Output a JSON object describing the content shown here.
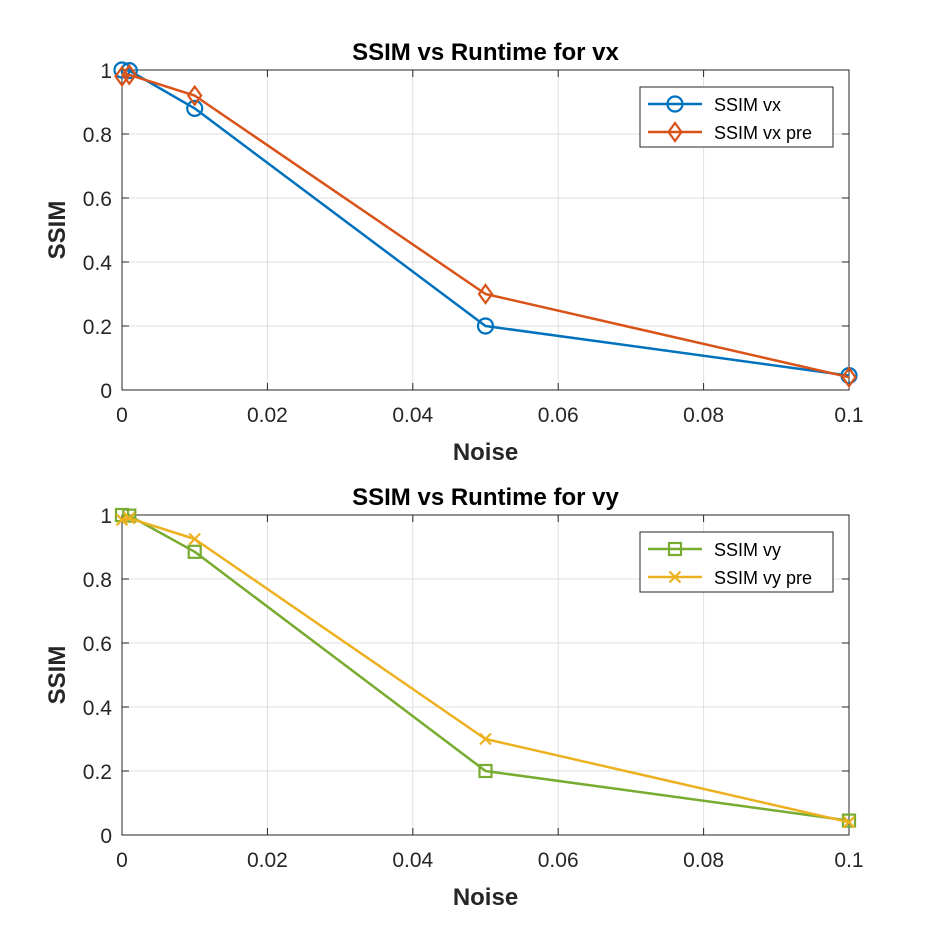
{
  "chart_data": [
    {
      "type": "line",
      "title": "SSIM vs Runtime for vx",
      "xlabel": "Noise",
      "ylabel": "SSIM",
      "xlim": [
        0,
        0.1
      ],
      "ylim": [
        0,
        1
      ],
      "xticks": [
        0,
        0.02,
        0.04,
        0.06,
        0.08,
        0.1
      ],
      "xtick_labels": [
        "0",
        "0.02",
        "0.04",
        "0.06",
        "0.08",
        "0.1"
      ],
      "yticks": [
        0,
        0.2,
        0.4,
        0.6,
        0.8,
        1
      ],
      "ytick_labels": [
        "0",
        "0.2",
        "0.4",
        "0.6",
        "0.8",
        "1"
      ],
      "grid": true,
      "legend_position": "top-right",
      "x": [
        0,
        0.001,
        0.01,
        0.05,
        0.1
      ],
      "series": [
        {
          "name": "SSIM vx",
          "values": [
            1.0,
            0.998,
            0.88,
            0.2,
            0.045
          ],
          "color": "#0072BD",
          "marker": "circle"
        },
        {
          "name": "SSIM vx pre",
          "values": [
            0.98,
            0.985,
            0.92,
            0.3,
            0.04
          ],
          "color": "#D95319",
          "marker": "diamond"
        }
      ]
    },
    {
      "type": "line",
      "title": "SSIM vs Runtime for vy",
      "xlabel": "Noise",
      "ylabel": "SSIM",
      "xlim": [
        0,
        0.1
      ],
      "ylim": [
        0,
        1
      ],
      "xticks": [
        0,
        0.02,
        0.04,
        0.06,
        0.08,
        0.1
      ],
      "xtick_labels": [
        "0",
        "0.02",
        "0.04",
        "0.06",
        "0.08",
        "0.1"
      ],
      "yticks": [
        0,
        0.2,
        0.4,
        0.6,
        0.8,
        1
      ],
      "ytick_labels": [
        "0",
        "0.2",
        "0.4",
        "0.6",
        "0.8",
        "1"
      ],
      "grid": true,
      "legend_position": "top-right",
      "x": [
        0,
        0.001,
        0.01,
        0.05,
        0.1
      ],
      "series": [
        {
          "name": "SSIM vy",
          "values": [
            1.0,
            0.998,
            0.885,
            0.2,
            0.045
          ],
          "color": "#77AC30",
          "marker": "square"
        },
        {
          "name": "SSIM vy pre",
          "values": [
            0.985,
            0.99,
            0.925,
            0.3,
            0.04
          ],
          "color": "#EDB120",
          "marker": "x"
        }
      ]
    }
  ]
}
